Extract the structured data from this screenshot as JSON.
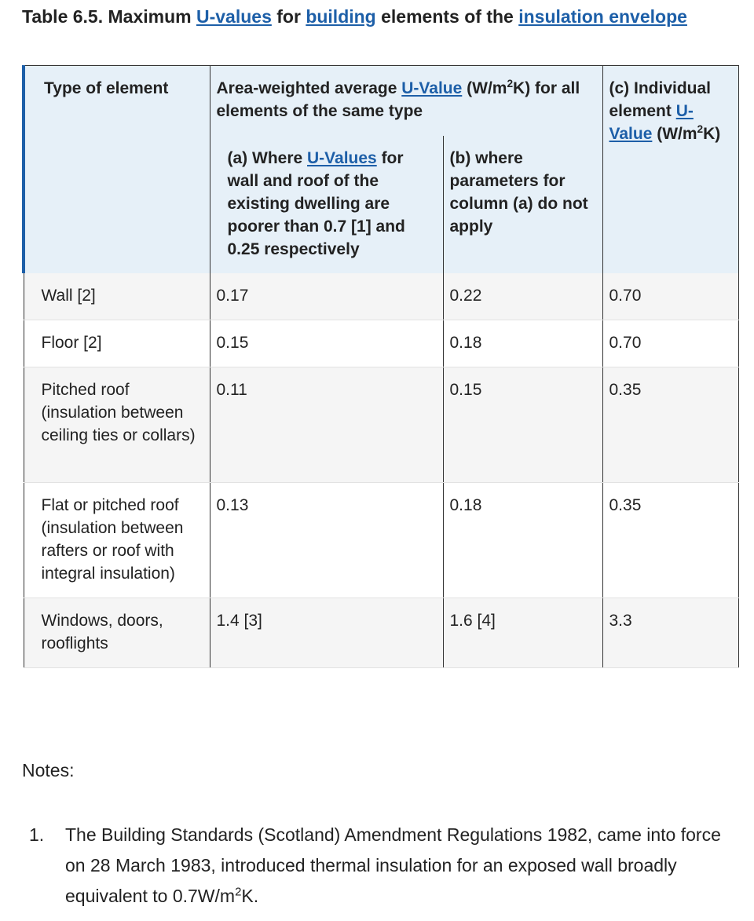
{
  "title": [
    "Table 6.5. Maximum ",
    {
      "link": "U-values"
    },
    " for ",
    {
      "link": "building"
    },
    " elements of the ",
    {
      "link": "insulation envelope"
    }
  ],
  "table": {
    "header": {
      "type": "Type of element",
      "group": [
        "Area-weighted average ",
        {
          "link": "U-Value"
        },
        " (W/m",
        {
          "sup": "2"
        },
        "K) for all elements of the same type"
      ],
      "col_a": [
        "(a) Where ",
        {
          "link": "U-Values"
        },
        " for wall and roof of the existing dwelling are poorer than 0.7 [1] and 0.25 respectively"
      ],
      "col_b": [
        "(b) where parameters for column (a) do not apply"
      ],
      "col_c": [
        "(c) Individual element ",
        {
          "link": "U-Value"
        },
        " (W/m",
        {
          "sup": "2"
        },
        "K)"
      ]
    },
    "rows": [
      [
        "Wall [2]",
        "0.17",
        "0.22",
        "0.70"
      ],
      [
        "Floor [2]",
        "0.15",
        "0.18",
        "0.70"
      ],
      [
        "Pitched roof (insulation between ceiling ties or collars)",
        "0.11",
        "0.15",
        "0.35"
      ],
      [
        "Flat or pitched roof (insulation between rafters or roof with integral insulation)",
        "0.13",
        "0.18",
        "0.35"
      ],
      [
        "Windows, doors, rooflights",
        "1.4 [3]",
        "1.6 [4]",
        "3.3"
      ]
    ]
  },
  "notes": {
    "heading": "Notes:",
    "items": [
      {
        "marker": "1.",
        "text": [
          "The Building Standards (Scotland) Amendment Regulations 1982, came into force on 28 March 1983, introduced thermal insulation for an exposed wall broadly equivalent to 0.7W/m",
          {
            "sup": "2"
          },
          "K."
        ]
      }
    ]
  }
}
